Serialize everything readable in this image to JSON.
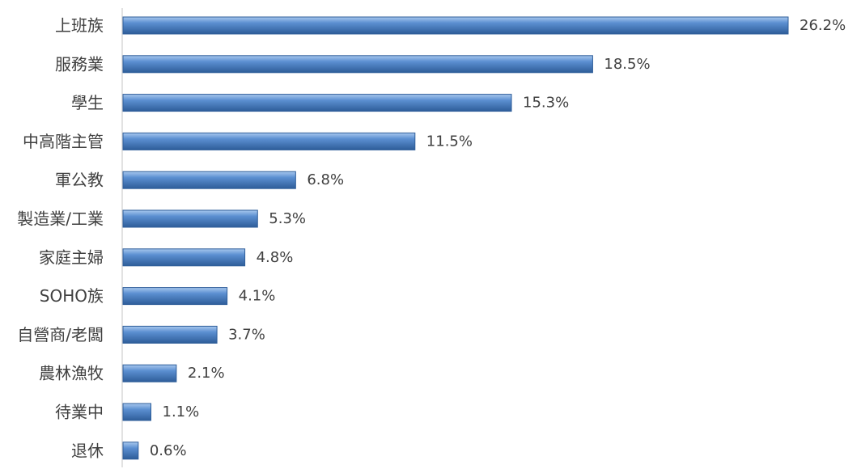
{
  "chart_data": {
    "type": "bar",
    "orientation": "horizontal",
    "categories": [
      "上班族",
      "服務業",
      "學生",
      "中高階主管",
      "軍公教",
      "製造業/工業",
      "家庭主婦",
      "SOHO族",
      "自營商/老闆",
      "農林漁牧",
      "待業中",
      "退休"
    ],
    "values": [
      26.2,
      18.5,
      15.3,
      11.5,
      6.8,
      5.3,
      4.8,
      4.1,
      3.7,
      2.1,
      1.1,
      0.6
    ],
    "value_labels": [
      "26.2%",
      "18.5%",
      "15.3%",
      "11.5%",
      "6.8%",
      "5.3%",
      "4.8%",
      "4.1%",
      "3.7%",
      "2.1%",
      "1.1%",
      "0.6%"
    ],
    "unit": "%",
    "xlim": [
      0,
      26.2
    ],
    "grid": false,
    "legend": "none",
    "bar_color": "#5b8fd1",
    "bar_color_light": "#a8c8ee",
    "bar_color_dark": "#2e5d99"
  }
}
